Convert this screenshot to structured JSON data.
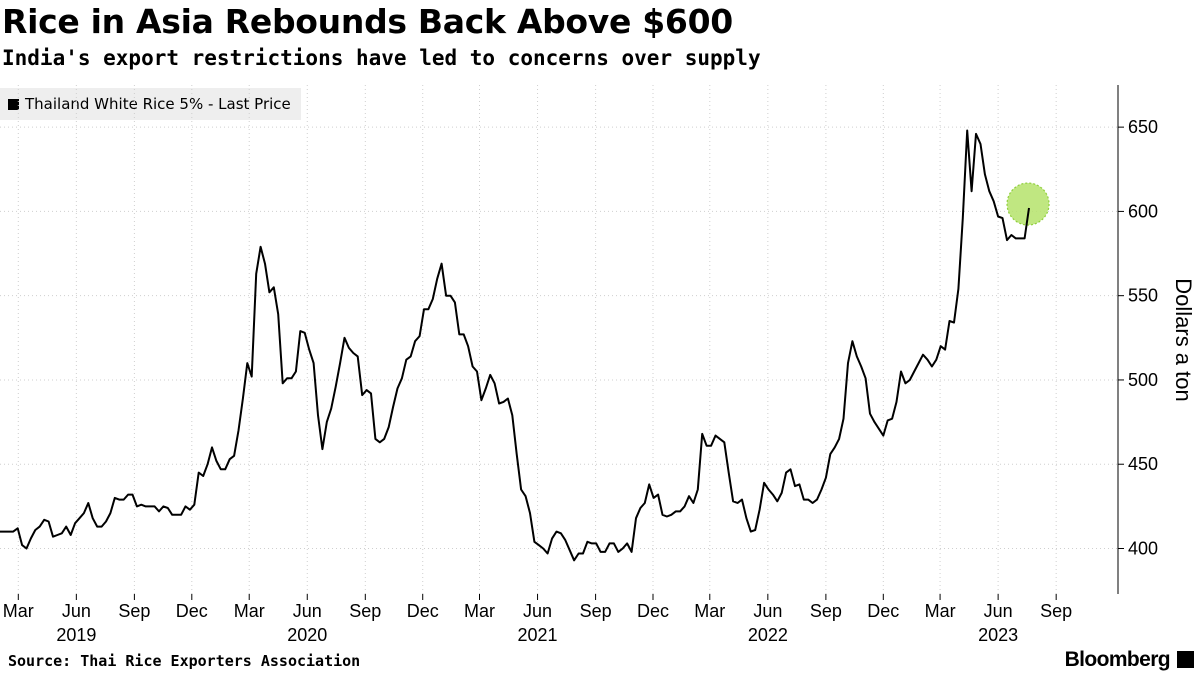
{
  "header": {
    "title": "Rice in Asia Rebounds Back Above $600",
    "subtitle": "India's export restrictions have led to concerns over supply"
  },
  "footer": {
    "source": "Source: Thai Rice Exporters Association",
    "brand": "Bloomberg"
  },
  "chart_data": {
    "type": "line",
    "title": "Rice in Asia Rebounds Back Above $600",
    "subtitle": "India's export restrictions have led to concerns over supply",
    "ylabel": "Dollars a ton",
    "ylim": [
      373,
      675
    ],
    "yticks": [
      400,
      450,
      500,
      550,
      600,
      650
    ],
    "xlim": [
      "2019-01-31",
      "2023-12-08"
    ],
    "x_month_ticks": [
      {
        "date": "2019-03-01",
        "label": "Mar"
      },
      {
        "date": "2019-06-01",
        "label": "Jun"
      },
      {
        "date": "2019-09-01",
        "label": "Sep"
      },
      {
        "date": "2019-12-01",
        "label": "Dec"
      },
      {
        "date": "2020-03-01",
        "label": "Mar"
      },
      {
        "date": "2020-06-01",
        "label": "Jun"
      },
      {
        "date": "2020-09-01",
        "label": "Sep"
      },
      {
        "date": "2020-12-01",
        "label": "Dec"
      },
      {
        "date": "2021-03-01",
        "label": "Mar"
      },
      {
        "date": "2021-06-01",
        "label": "Jun"
      },
      {
        "date": "2021-09-01",
        "label": "Sep"
      },
      {
        "date": "2021-12-01",
        "label": "Dec"
      },
      {
        "date": "2022-03-01",
        "label": "Mar"
      },
      {
        "date": "2022-06-01",
        "label": "Jun"
      },
      {
        "date": "2022-09-01",
        "label": "Sep"
      },
      {
        "date": "2022-12-01",
        "label": "Dec"
      },
      {
        "date": "2023-03-01",
        "label": "Mar"
      },
      {
        "date": "2023-06-01",
        "label": "Jun"
      },
      {
        "date": "2023-09-01",
        "label": "Sep"
      }
    ],
    "x_year_labels": [
      {
        "date": "2019-06-01",
        "label": "2019"
      },
      {
        "date": "2020-06-01",
        "label": "2020"
      },
      {
        "date": "2021-06-01",
        "label": "2021"
      },
      {
        "date": "2022-06-01",
        "label": "2022"
      },
      {
        "date": "2023-06-01",
        "label": "2023"
      }
    ],
    "legend": {
      "position": "top-left",
      "entries": [
        "Thailand White Rice 5% - Last Price"
      ]
    },
    "grid": true,
    "highlight": {
      "date": "2023-11-15",
      "value": 602,
      "color": "#b5e36b"
    },
    "series": [
      {
        "name": "Thailand White Rice 5% - Last Price",
        "color": "#000000",
        "points": [
          [
            "2019-01-31",
            410
          ],
          [
            "2019-02-07",
            410
          ],
          [
            "2019-02-14",
            410
          ],
          [
            "2019-02-21",
            410
          ],
          [
            "2019-02-28",
            412
          ],
          [
            "2019-03-07",
            402
          ],
          [
            "2019-03-14",
            400
          ],
          [
            "2019-03-21",
            406
          ],
          [
            "2019-03-28",
            411
          ],
          [
            "2019-04-04",
            413
          ],
          [
            "2019-04-11",
            417
          ],
          [
            "2019-04-18",
            416
          ],
          [
            "2019-04-25",
            407
          ],
          [
            "2019-05-02",
            408
          ],
          [
            "2019-05-09",
            409
          ],
          [
            "2019-05-16",
            413
          ],
          [
            "2019-05-23",
            408
          ],
          [
            "2019-05-30",
            415
          ],
          [
            "2019-06-06",
            418
          ],
          [
            "2019-06-13",
            421
          ],
          [
            "2019-06-20",
            427
          ],
          [
            "2019-06-27",
            418
          ],
          [
            "2019-07-04",
            413
          ],
          [
            "2019-07-11",
            413
          ],
          [
            "2019-07-18",
            416
          ],
          [
            "2019-07-25",
            421
          ],
          [
            "2019-08-01",
            430
          ],
          [
            "2019-08-08",
            429
          ],
          [
            "2019-08-15",
            429
          ],
          [
            "2019-08-22",
            432
          ],
          [
            "2019-08-29",
            432
          ],
          [
            "2019-09-05",
            425
          ],
          [
            "2019-09-12",
            426
          ],
          [
            "2019-09-19",
            425
          ],
          [
            "2019-09-26",
            425
          ],
          [
            "2019-10-03",
            425
          ],
          [
            "2019-10-10",
            422
          ],
          [
            "2019-10-17",
            425
          ],
          [
            "2019-10-24",
            424
          ],
          [
            "2019-10-31",
            420
          ],
          [
            "2019-11-07",
            420
          ],
          [
            "2019-11-14",
            420
          ],
          [
            "2019-11-21",
            425
          ],
          [
            "2019-11-28",
            423
          ],
          [
            "2019-12-05",
            426
          ],
          [
            "2019-12-12",
            445
          ],
          [
            "2019-12-19",
            443
          ],
          [
            "2019-12-26",
            450
          ],
          [
            "2020-01-02",
            460
          ],
          [
            "2020-01-09",
            452
          ],
          [
            "2020-01-16",
            447
          ],
          [
            "2020-01-23",
            447
          ],
          [
            "2020-01-30",
            453
          ],
          [
            "2020-02-06",
            455
          ],
          [
            "2020-02-13",
            470
          ],
          [
            "2020-02-20",
            489
          ],
          [
            "2020-02-27",
            510
          ],
          [
            "2020-03-05",
            502
          ],
          [
            "2020-03-12",
            563
          ],
          [
            "2020-03-19",
            579
          ],
          [
            "2020-03-26",
            569
          ],
          [
            "2020-04-02",
            552
          ],
          [
            "2020-04-09",
            555
          ],
          [
            "2020-04-16",
            539
          ],
          [
            "2020-04-23",
            498
          ],
          [
            "2020-04-30",
            501
          ],
          [
            "2020-05-07",
            501
          ],
          [
            "2020-05-14",
            505
          ],
          [
            "2020-05-21",
            529
          ],
          [
            "2020-05-28",
            528
          ],
          [
            "2020-06-04",
            518
          ],
          [
            "2020-06-11",
            510
          ],
          [
            "2020-06-18",
            479
          ],
          [
            "2020-06-25",
            459
          ],
          [
            "2020-07-02",
            475
          ],
          [
            "2020-07-09",
            483
          ],
          [
            "2020-07-16",
            496
          ],
          [
            "2020-07-23",
            510
          ],
          [
            "2020-07-30",
            525
          ],
          [
            "2020-08-06",
            519
          ],
          [
            "2020-08-13",
            516
          ],
          [
            "2020-08-20",
            514
          ],
          [
            "2020-08-27",
            491
          ],
          [
            "2020-09-03",
            494
          ],
          [
            "2020-09-10",
            492
          ],
          [
            "2020-09-17",
            465
          ],
          [
            "2020-09-24",
            463
          ],
          [
            "2020-10-01",
            465
          ],
          [
            "2020-10-08",
            472
          ],
          [
            "2020-10-15",
            484
          ],
          [
            "2020-10-22",
            495
          ],
          [
            "2020-10-29",
            501
          ],
          [
            "2020-11-05",
            512
          ],
          [
            "2020-11-12",
            514
          ],
          [
            "2020-11-19",
            523
          ],
          [
            "2020-11-26",
            526
          ],
          [
            "2020-12-03",
            542
          ],
          [
            "2020-12-10",
            542
          ],
          [
            "2020-12-17",
            548
          ],
          [
            "2020-12-24",
            560
          ],
          [
            "2020-12-31",
            569
          ],
          [
            "2021-01-07",
            550
          ],
          [
            "2021-01-14",
            550
          ],
          [
            "2021-01-21",
            546
          ],
          [
            "2021-01-28",
            527
          ],
          [
            "2021-02-04",
            527
          ],
          [
            "2021-02-11",
            520
          ],
          [
            "2021-02-18",
            508
          ],
          [
            "2021-02-25",
            505
          ],
          [
            "2021-03-04",
            488
          ],
          [
            "2021-03-11",
            495
          ],
          [
            "2021-03-18",
            503
          ],
          [
            "2021-03-25",
            498
          ],
          [
            "2021-04-01",
            486
          ],
          [
            "2021-04-08",
            487
          ],
          [
            "2021-04-15",
            489
          ],
          [
            "2021-04-22",
            479
          ],
          [
            "2021-04-29",
            456
          ],
          [
            "2021-05-06",
            435
          ],
          [
            "2021-05-13",
            431
          ],
          [
            "2021-05-20",
            421
          ],
          [
            "2021-05-27",
            404
          ],
          [
            "2021-06-03",
            402
          ],
          [
            "2021-06-10",
            400
          ],
          [
            "2021-06-17",
            397
          ],
          [
            "2021-06-24",
            406
          ],
          [
            "2021-07-01",
            410
          ],
          [
            "2021-07-08",
            409
          ],
          [
            "2021-07-15",
            405
          ],
          [
            "2021-07-22",
            399
          ],
          [
            "2021-07-29",
            393
          ],
          [
            "2021-08-05",
            397
          ],
          [
            "2021-08-12",
            397
          ],
          [
            "2021-08-19",
            404
          ],
          [
            "2021-08-26",
            403
          ],
          [
            "2021-09-02",
            403
          ],
          [
            "2021-09-09",
            398
          ],
          [
            "2021-09-16",
            398
          ],
          [
            "2021-09-23",
            403
          ],
          [
            "2021-09-30",
            403
          ],
          [
            "2021-10-07",
            398
          ],
          [
            "2021-10-14",
            400
          ],
          [
            "2021-10-21",
            403
          ],
          [
            "2021-10-28",
            398
          ],
          [
            "2021-11-04",
            418
          ],
          [
            "2021-11-11",
            424
          ],
          [
            "2021-11-18",
            427
          ],
          [
            "2021-11-25",
            438
          ],
          [
            "2021-12-02",
            430
          ],
          [
            "2021-12-09",
            432
          ],
          [
            "2021-12-16",
            420
          ],
          [
            "2021-12-23",
            419
          ],
          [
            "2021-12-30",
            420
          ],
          [
            "2022-01-06",
            422
          ],
          [
            "2022-01-13",
            422
          ],
          [
            "2022-01-20",
            425
          ],
          [
            "2022-01-27",
            431
          ],
          [
            "2022-02-03",
            427
          ],
          [
            "2022-02-10",
            435
          ],
          [
            "2022-02-17",
            468
          ],
          [
            "2022-02-24",
            461
          ],
          [
            "2022-03-03",
            461
          ],
          [
            "2022-03-10",
            467
          ],
          [
            "2022-03-17",
            465
          ],
          [
            "2022-03-24",
            463
          ],
          [
            "2022-03-31",
            445
          ],
          [
            "2022-04-07",
            428
          ],
          [
            "2022-04-14",
            427
          ],
          [
            "2022-04-21",
            429
          ],
          [
            "2022-04-28",
            418
          ],
          [
            "2022-05-05",
            410
          ],
          [
            "2022-05-12",
            411
          ],
          [
            "2022-05-19",
            423
          ],
          [
            "2022-05-26",
            439
          ],
          [
            "2022-06-02",
            435
          ],
          [
            "2022-06-09",
            432
          ],
          [
            "2022-06-16",
            428
          ],
          [
            "2022-06-23",
            433
          ],
          [
            "2022-06-30",
            445
          ],
          [
            "2022-07-07",
            447
          ],
          [
            "2022-07-14",
            437
          ],
          [
            "2022-07-21",
            438
          ],
          [
            "2022-07-28",
            429
          ],
          [
            "2022-08-04",
            429
          ],
          [
            "2022-08-11",
            427
          ],
          [
            "2022-08-18",
            429
          ],
          [
            "2022-08-25",
            435
          ],
          [
            "2022-09-01",
            442
          ],
          [
            "2022-09-08",
            456
          ],
          [
            "2022-09-15",
            460
          ],
          [
            "2022-09-22",
            465
          ],
          [
            "2022-09-29",
            477
          ],
          [
            "2022-10-06",
            510
          ],
          [
            "2022-10-13",
            523
          ],
          [
            "2022-10-20",
            514
          ],
          [
            "2022-10-27",
            508
          ],
          [
            "2022-11-03",
            501
          ],
          [
            "2022-11-10",
            480
          ],
          [
            "2022-11-17",
            475
          ],
          [
            "2022-11-24",
            471
          ],
          [
            "2022-12-01",
            467
          ],
          [
            "2022-12-08",
            476
          ],
          [
            "2022-12-15",
            477
          ],
          [
            "2022-12-22",
            487
          ],
          [
            "2022-12-29",
            505
          ],
          [
            "2023-01-05",
            498
          ],
          [
            "2023-01-12",
            500
          ],
          [
            "2023-01-19",
            505
          ],
          [
            "2023-01-26",
            510
          ],
          [
            "2023-02-02",
            515
          ],
          [
            "2023-02-09",
            512
          ],
          [
            "2023-02-16",
            508
          ],
          [
            "2023-02-23",
            512
          ],
          [
            "2023-03-02",
            520
          ],
          [
            "2023-03-09",
            518
          ],
          [
            "2023-03-16",
            535
          ],
          [
            "2023-03-23",
            534
          ],
          [
            "2023-03-30",
            554
          ],
          [
            "2023-04-06",
            596
          ],
          [
            "2023-04-13",
            648
          ],
          [
            "2023-04-20",
            612
          ],
          [
            "2023-04-27",
            646
          ],
          [
            "2023-05-04",
            640
          ],
          [
            "2023-05-11",
            622
          ],
          [
            "2023-05-18",
            612
          ],
          [
            "2023-05-25",
            606
          ],
          [
            "2023-06-01",
            597
          ],
          [
            "2023-06-08",
            596
          ],
          [
            "2023-06-15",
            583
          ],
          [
            "2023-06-22",
            586
          ],
          [
            "2023-06-29",
            584
          ],
          [
            "2023-07-06",
            584
          ],
          [
            "2023-07-13",
            584
          ],
          [
            "2023-07-20",
            602
          ]
        ]
      }
    ]
  }
}
